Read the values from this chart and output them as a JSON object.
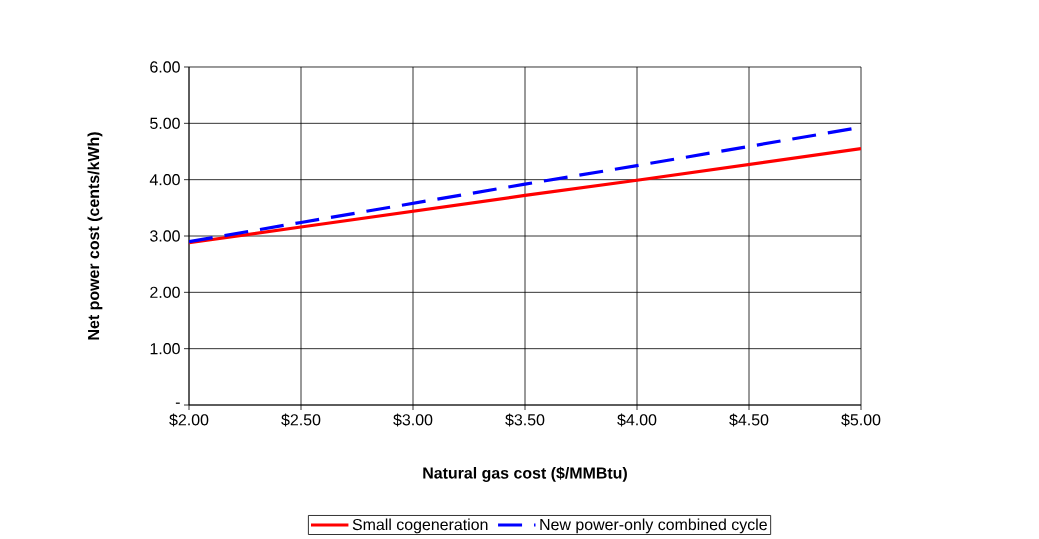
{
  "chart_data": {
    "type": "line",
    "xlabel": "Natural gas cost ($/MMBtu)",
    "ylabel": "Net power cost (cents/kWh)",
    "x": [
      2.0,
      2.5,
      3.0,
      3.5,
      4.0,
      4.5,
      5.0
    ],
    "series": [
      {
        "name": "Small cogeneration",
        "color": "#ff0000",
        "line_style": "solid",
        "values": [
          2.88,
          3.16,
          3.44,
          3.72,
          3.99,
          4.27,
          4.55
        ]
      },
      {
        "name": "New power-only combined cycle",
        "color": "#0000ff",
        "line_style": "dashed",
        "values": [
          2.9,
          3.24,
          3.58,
          3.92,
          4.25,
          4.59,
          4.93
        ]
      }
    ],
    "xlim": [
      2.0,
      5.0
    ],
    "ylim": [
      0,
      6
    ],
    "xticks": [
      {
        "value": 2.0,
        "label": "$2.00"
      },
      {
        "value": 2.5,
        "label": "$2.50"
      },
      {
        "value": 3.0,
        "label": "$3.00"
      },
      {
        "value": 3.5,
        "label": "$3.50"
      },
      {
        "value": 4.0,
        "label": "$4.00"
      },
      {
        "value": 4.5,
        "label": "$4.50"
      },
      {
        "value": 5.0,
        "label": "$5.00"
      }
    ],
    "yticks": [
      {
        "value": 0,
        "label": "-"
      },
      {
        "value": 1,
        "label": "1.00"
      },
      {
        "value": 2,
        "label": "2.00"
      },
      {
        "value": 3,
        "label": "3.00"
      },
      {
        "value": 4,
        "label": "4.00"
      },
      {
        "value": 5,
        "label": "5.00"
      },
      {
        "value": 6,
        "label": "6.00"
      }
    ],
    "grid": true,
    "legend": "bottom"
  }
}
